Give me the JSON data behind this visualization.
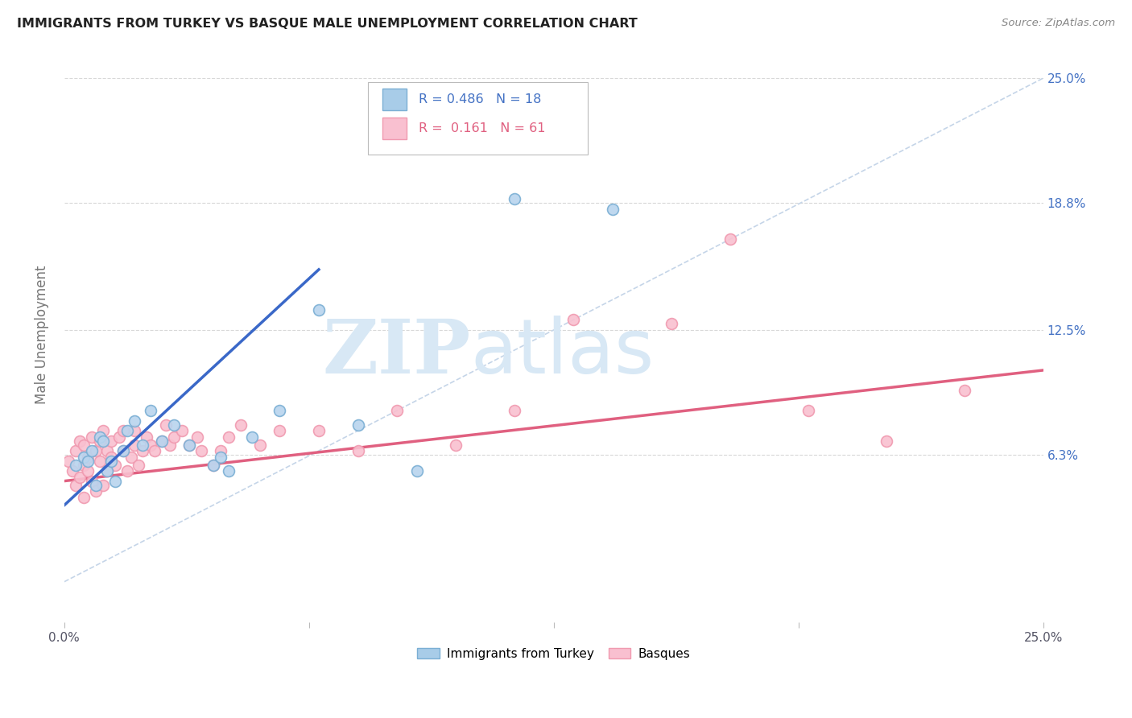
{
  "title": "IMMIGRANTS FROM TURKEY VS BASQUE MALE UNEMPLOYMENT CORRELATION CHART",
  "source": "Source: ZipAtlas.com",
  "ylabel": "Male Unemployment",
  "yticks": [
    "6.3%",
    "12.5%",
    "18.8%",
    "25.0%"
  ],
  "ytick_vals": [
    0.063,
    0.125,
    0.188,
    0.25
  ],
  "xrange": [
    0.0,
    0.25
  ],
  "yrange": [
    -0.02,
    0.265
  ],
  "background_color": "#ffffff",
  "watermark_zip": "ZIP",
  "watermark_atlas": "atlas",
  "watermark_color": "#d8e8f5",
  "scatter_turkey": {
    "x": [
      0.003,
      0.005,
      0.006,
      0.007,
      0.008,
      0.009,
      0.01,
      0.011,
      0.012,
      0.013,
      0.015,
      0.016,
      0.018,
      0.02,
      0.022,
      0.025,
      0.028,
      0.032,
      0.038,
      0.04,
      0.042,
      0.048,
      0.055,
      0.065,
      0.075,
      0.09,
      0.115,
      0.14
    ],
    "y": [
      0.058,
      0.062,
      0.06,
      0.065,
      0.048,
      0.072,
      0.07,
      0.055,
      0.06,
      0.05,
      0.065,
      0.075,
      0.08,
      0.068,
      0.085,
      0.07,
      0.078,
      0.068,
      0.058,
      0.062,
      0.055,
      0.072,
      0.085,
      0.135,
      0.078,
      0.055,
      0.19,
      0.185
    ],
    "color": "#b8d4ee",
    "edgecolor": "#7bafd4",
    "size": 100,
    "alpha": 0.9
  },
  "scatter_basques": {
    "x": [
      0.001,
      0.002,
      0.003,
      0.003,
      0.004,
      0.004,
      0.005,
      0.005,
      0.005,
      0.006,
      0.006,
      0.007,
      0.007,
      0.008,
      0.008,
      0.009,
      0.009,
      0.01,
      0.01,
      0.011,
      0.011,
      0.012,
      0.012,
      0.013,
      0.014,
      0.015,
      0.015,
      0.016,
      0.017,
      0.018,
      0.018,
      0.019,
      0.02,
      0.021,
      0.022,
      0.023,
      0.025,
      0.026,
      0.027,
      0.028,
      0.03,
      0.032,
      0.034,
      0.035,
      0.038,
      0.04,
      0.042,
      0.045,
      0.05,
      0.055,
      0.065,
      0.075,
      0.085,
      0.1,
      0.115,
      0.13,
      0.17,
      0.21,
      0.23,
      0.19,
      0.155
    ],
    "y": [
      0.06,
      0.055,
      0.048,
      0.065,
      0.052,
      0.07,
      0.058,
      0.042,
      0.068,
      0.055,
      0.062,
      0.05,
      0.072,
      0.045,
      0.065,
      0.06,
      0.07,
      0.048,
      0.075,
      0.055,
      0.065,
      0.062,
      0.07,
      0.058,
      0.072,
      0.065,
      0.075,
      0.055,
      0.062,
      0.068,
      0.075,
      0.058,
      0.065,
      0.072,
      0.068,
      0.065,
      0.07,
      0.078,
      0.068,
      0.072,
      0.075,
      0.068,
      0.072,
      0.065,
      0.058,
      0.065,
      0.072,
      0.078,
      0.068,
      0.075,
      0.075,
      0.065,
      0.085,
      0.068,
      0.085,
      0.13,
      0.17,
      0.07,
      0.095,
      0.085,
      0.128
    ],
    "color": "#f9c0d0",
    "edgecolor": "#f09ab0",
    "size": 100,
    "alpha": 0.9
  },
  "trendline_turkey": {
    "x": [
      0.0,
      0.065
    ],
    "y": [
      0.038,
      0.155
    ],
    "color": "#3a68c8",
    "linewidth": 2.5
  },
  "trendline_basques": {
    "x": [
      0.0,
      0.25
    ],
    "y": [
      0.05,
      0.105
    ],
    "color": "#e06080",
    "linewidth": 2.5
  },
  "diagonal_line": {
    "x": [
      0.0,
      0.25
    ],
    "y": [
      0.0,
      0.25
    ],
    "color": "#c5d5e8",
    "linewidth": 1.2,
    "linestyle": "--"
  },
  "legend_color1": "#a8cce8",
  "legend_edge1": "#7bafd4",
  "legend_color2": "#f9c0d0",
  "legend_edge2": "#f09ab0",
  "grid_color": "#d8d8d8",
  "grid_linestyle": "--",
  "grid_linewidth": 0.8
}
